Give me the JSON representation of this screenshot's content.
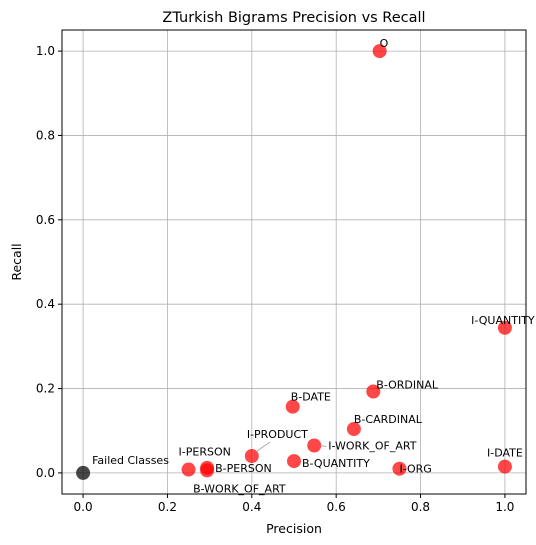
{
  "chart_data": {
    "type": "scatter",
    "title": "ZTurkish Bigrams Precision vs Recall",
    "xlabel": "Precision",
    "ylabel": "Recall",
    "xlim": [
      -0.05,
      1.05
    ],
    "ylim": [
      -0.05,
      1.05
    ],
    "xticks": [
      "0.0",
      "0.2",
      "0.4",
      "0.6",
      "0.8",
      "1.0"
    ],
    "yticks": [
      "0.0",
      "0.2",
      "0.4",
      "0.6",
      "0.8",
      "1.0"
    ],
    "grid": true,
    "colors": {
      "point": "#ff0000",
      "failed": "#000000",
      "grid": "#b0b0b0"
    },
    "points": [
      {
        "label": "O",
        "x": 0.703,
        "y": 1.0
      },
      {
        "label": "I-QUANTITY",
        "x": 1.0,
        "y": 0.344
      },
      {
        "label": "B-ORDINAL",
        "x": 0.688,
        "y": 0.193
      },
      {
        "label": "B-DATE",
        "x": 0.497,
        "y": 0.157
      },
      {
        "label": "B-CARDINAL",
        "x": 0.642,
        "y": 0.104
      },
      {
        "label": "I-WORK_OF_ART",
        "x": 0.548,
        "y": 0.065
      },
      {
        "label": "I-PRODUCT",
        "x": 0.4,
        "y": 0.04
      },
      {
        "label": "B-QUANTITY",
        "x": 0.5,
        "y": 0.028
      },
      {
        "label": "I-DATE",
        "x": 1.0,
        "y": 0.015
      },
      {
        "label": "I-ORG",
        "x": 0.75,
        "y": 0.01
      },
      {
        "label": "I-PERSON",
        "x": 0.25,
        "y": 0.008
      },
      {
        "label": "B-PERSON",
        "x": 0.294,
        "y": 0.012
      },
      {
        "label": "B-WORK_OF_ART",
        "x": 0.294,
        "y": 0.006
      }
    ],
    "failed": {
      "label": "Failed Classes",
      "x": 0.0,
      "y": 0.0
    }
  }
}
